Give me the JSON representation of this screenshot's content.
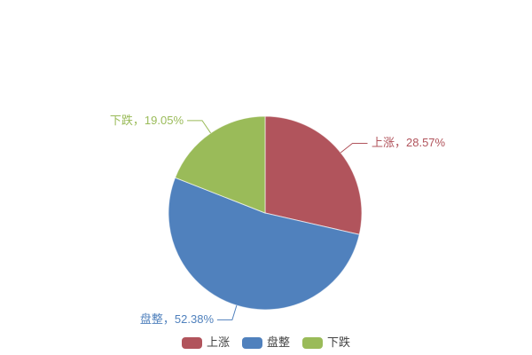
{
  "chart_data": {
    "type": "pie",
    "legend_position": "bottom",
    "start_angle_deg": 0,
    "direction": "clockwise",
    "background": "#ffffff",
    "slices": [
      {
        "label": "上涨",
        "value": 28.57,
        "color": "#b1545c",
        "data_label": "上涨，28.57%"
      },
      {
        "label": "盘整",
        "value": 52.38,
        "color": "#5081bd",
        "data_label": "盘整，52.38%"
      },
      {
        "label": "下跌",
        "value": 19.05,
        "color": "#9abb59",
        "data_label": "下跌，19.05%"
      }
    ],
    "legend_text_color": "#434343"
  }
}
